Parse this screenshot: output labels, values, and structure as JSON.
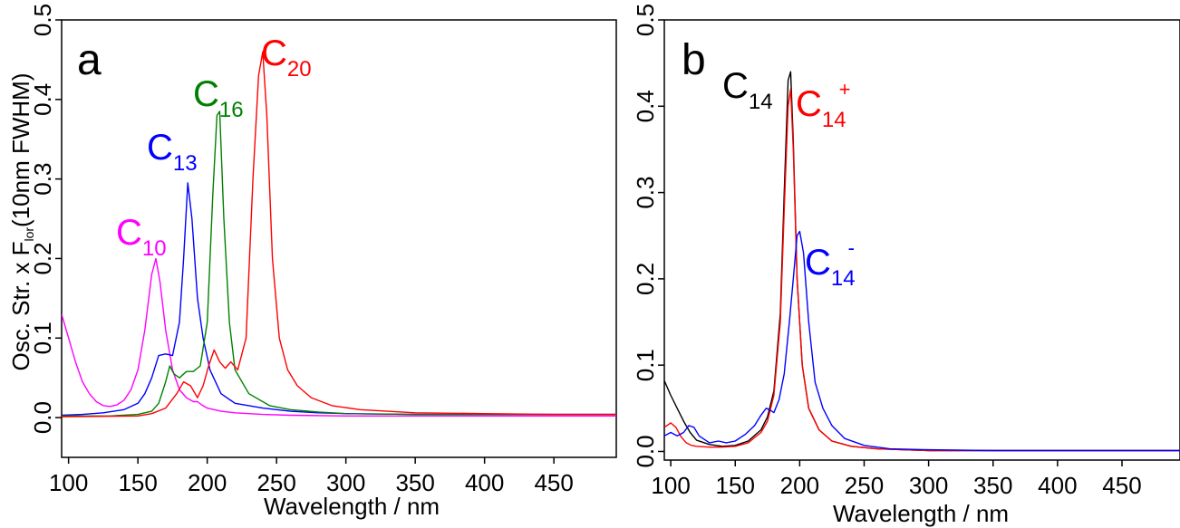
{
  "chart_data": [
    {
      "panel_label": "a",
      "type": "line",
      "title": "",
      "xlabel": "Wavelength / nm",
      "ylabel_main": "Osc. Str. x F",
      "ylabel_sub": "lor",
      "ylabel_tail": "(10nm FWHM)",
      "xlim": [
        95,
        495
      ],
      "ylim": [
        -0.05,
        0.5
      ],
      "xticks": [
        100,
        150,
        200,
        250,
        300,
        350,
        400,
        450
      ],
      "yticks": [
        0.0,
        0.1,
        0.2,
        0.3,
        0.4,
        0.5
      ],
      "ytick_labels": [
        "0.0",
        "0.1",
        "0.2",
        "0.3",
        "0.4",
        "0.5"
      ],
      "grid": false,
      "series": [
        {
          "color": "#ff00ff",
          "annotation_base": "C",
          "annotation_sub": "10",
          "annotation_sup": "",
          "x": [
            95,
            100,
            105,
            110,
            115,
            120,
            125,
            130,
            135,
            140,
            145,
            150,
            155,
            160,
            163,
            166,
            170,
            175,
            180,
            185,
            190,
            193,
            196,
            200,
            210,
            220,
            240,
            260,
            300,
            350,
            400,
            450,
            495
          ],
          "y": [
            0.13,
            0.1,
            0.07,
            0.045,
            0.03,
            0.02,
            0.015,
            0.014,
            0.016,
            0.022,
            0.035,
            0.06,
            0.11,
            0.18,
            0.2,
            0.17,
            0.11,
            0.06,
            0.035,
            0.025,
            0.02,
            0.02,
            0.016,
            0.012,
            0.008,
            0.006,
            0.004,
            0.003,
            0.002,
            0.002,
            0.002,
            0.002,
            0.002
          ]
        },
        {
          "color": "#0000ff",
          "annotation_base": "C",
          "annotation_sub": "13",
          "annotation_sup": "",
          "x": [
            95,
            110,
            125,
            140,
            150,
            155,
            160,
            165,
            170,
            175,
            180,
            183,
            186,
            189,
            193,
            197,
            202,
            210,
            220,
            230,
            240,
            260,
            280,
            300,
            350,
            400,
            450,
            495
          ],
          "y": [
            0.003,
            0.004,
            0.006,
            0.01,
            0.018,
            0.03,
            0.05,
            0.078,
            0.08,
            0.078,
            0.12,
            0.2,
            0.295,
            0.25,
            0.15,
            0.1,
            0.06,
            0.03,
            0.018,
            0.015,
            0.012,
            0.008,
            0.006,
            0.005,
            0.004,
            0.004,
            0.004,
            0.004
          ]
        },
        {
          "color": "#008000",
          "annotation_base": "C",
          "annotation_sub": "16",
          "annotation_sup": "",
          "x": [
            95,
            130,
            150,
            160,
            165,
            170,
            173,
            176,
            180,
            185,
            190,
            195,
            200,
            204,
            207,
            209,
            212,
            216,
            220,
            230,
            245,
            260,
            280,
            300,
            350,
            400,
            450,
            495
          ],
          "y": [
            0.002,
            0.002,
            0.004,
            0.008,
            0.018,
            0.045,
            0.065,
            0.055,
            0.05,
            0.058,
            0.058,
            0.065,
            0.12,
            0.28,
            0.38,
            0.385,
            0.25,
            0.12,
            0.06,
            0.03,
            0.015,
            0.01,
            0.007,
            0.005,
            0.004,
            0.004,
            0.004,
            0.004
          ]
        },
        {
          "color": "#ff0000",
          "annotation_base": "C",
          "annotation_sub": "20",
          "annotation_sup": "",
          "x": [
            95,
            150,
            160,
            170,
            178,
            183,
            188,
            193,
            197,
            201,
            205,
            209,
            213,
            217,
            222,
            228,
            233,
            237,
            240,
            243,
            247,
            252,
            258,
            265,
            275,
            290,
            310,
            350,
            400,
            450,
            495
          ],
          "y": [
            0.001,
            0.002,
            0.005,
            0.012,
            0.03,
            0.045,
            0.04,
            0.025,
            0.04,
            0.065,
            0.085,
            0.07,
            0.062,
            0.07,
            0.06,
            0.1,
            0.3,
            0.43,
            0.46,
            0.38,
            0.2,
            0.1,
            0.06,
            0.04,
            0.025,
            0.015,
            0.01,
            0.006,
            0.005,
            0.004,
            0.004
          ]
        }
      ]
    },
    {
      "panel_label": "b",
      "type": "line",
      "title": "",
      "xlabel": "Wavelength / nm",
      "xlim": [
        95,
        495
      ],
      "ylim": [
        -0.01,
        0.5
      ],
      "xticks": [
        100,
        150,
        200,
        250,
        300,
        350,
        400,
        450
      ],
      "yticks": [
        0.0,
        0.1,
        0.2,
        0.3,
        0.4,
        0.5
      ],
      "ytick_labels": [
        "0.0",
        "0.1",
        "0.2",
        "0.3",
        "0.4",
        "0.5"
      ],
      "grid": false,
      "series": [
        {
          "color": "#000000",
          "annotation_base": "C",
          "annotation_sub": "14",
          "annotation_sup": "",
          "x": [
            95,
            100,
            105,
            110,
            115,
            120,
            130,
            140,
            150,
            160,
            170,
            175,
            180,
            185,
            188,
            191,
            193,
            195,
            198,
            202,
            207,
            215,
            225,
            240,
            260,
            280,
            300,
            350,
            400,
            450,
            495
          ],
          "y": [
            0.082,
            0.065,
            0.05,
            0.035,
            0.022,
            0.013,
            0.008,
            0.006,
            0.007,
            0.012,
            0.025,
            0.04,
            0.07,
            0.16,
            0.3,
            0.43,
            0.44,
            0.36,
            0.2,
            0.1,
            0.05,
            0.025,
            0.012,
            0.006,
            0.003,
            0.002,
            0.001,
            0.001,
            0.001,
            0.001,
            0.001
          ]
        },
        {
          "color": "#ff0000",
          "annotation_base": "C",
          "annotation_sub": "14",
          "annotation_sup": "+",
          "x": [
            95,
            100,
            104,
            108,
            112,
            116,
            120,
            130,
            140,
            150,
            160,
            170,
            175,
            180,
            185,
            188,
            191,
            193,
            195,
            198,
            202,
            207,
            215,
            225,
            240,
            260,
            280,
            300,
            350,
            400,
            450,
            495
          ],
          "y": [
            0.028,
            0.033,
            0.028,
            0.017,
            0.01,
            0.007,
            0.006,
            0.005,
            0.005,
            0.006,
            0.01,
            0.022,
            0.035,
            0.065,
            0.15,
            0.28,
            0.4,
            0.42,
            0.35,
            0.2,
            0.1,
            0.05,
            0.025,
            0.012,
            0.006,
            0.003,
            0.002,
            0.001,
            0.001,
            0.001,
            0.001,
            0.001
          ]
        },
        {
          "color": "#0000ff",
          "annotation_base": "C",
          "annotation_sub": "14",
          "annotation_sup": "-",
          "x": [
            95,
            100,
            105,
            110,
            114,
            118,
            122,
            130,
            137,
            143,
            150,
            158,
            165,
            170,
            174,
            177,
            180,
            184,
            188,
            192,
            195,
            198,
            200,
            203,
            207,
            212,
            218,
            225,
            235,
            250,
            270,
            300,
            350,
            400,
            450,
            495
          ],
          "y": [
            0.018,
            0.022,
            0.018,
            0.022,
            0.03,
            0.028,
            0.018,
            0.01,
            0.012,
            0.01,
            0.012,
            0.02,
            0.03,
            0.042,
            0.05,
            0.048,
            0.045,
            0.06,
            0.09,
            0.15,
            0.2,
            0.25,
            0.255,
            0.23,
            0.15,
            0.08,
            0.05,
            0.03,
            0.015,
            0.007,
            0.003,
            0.002,
            0.001,
            0.001,
            0.001,
            0.001
          ]
        }
      ]
    }
  ]
}
